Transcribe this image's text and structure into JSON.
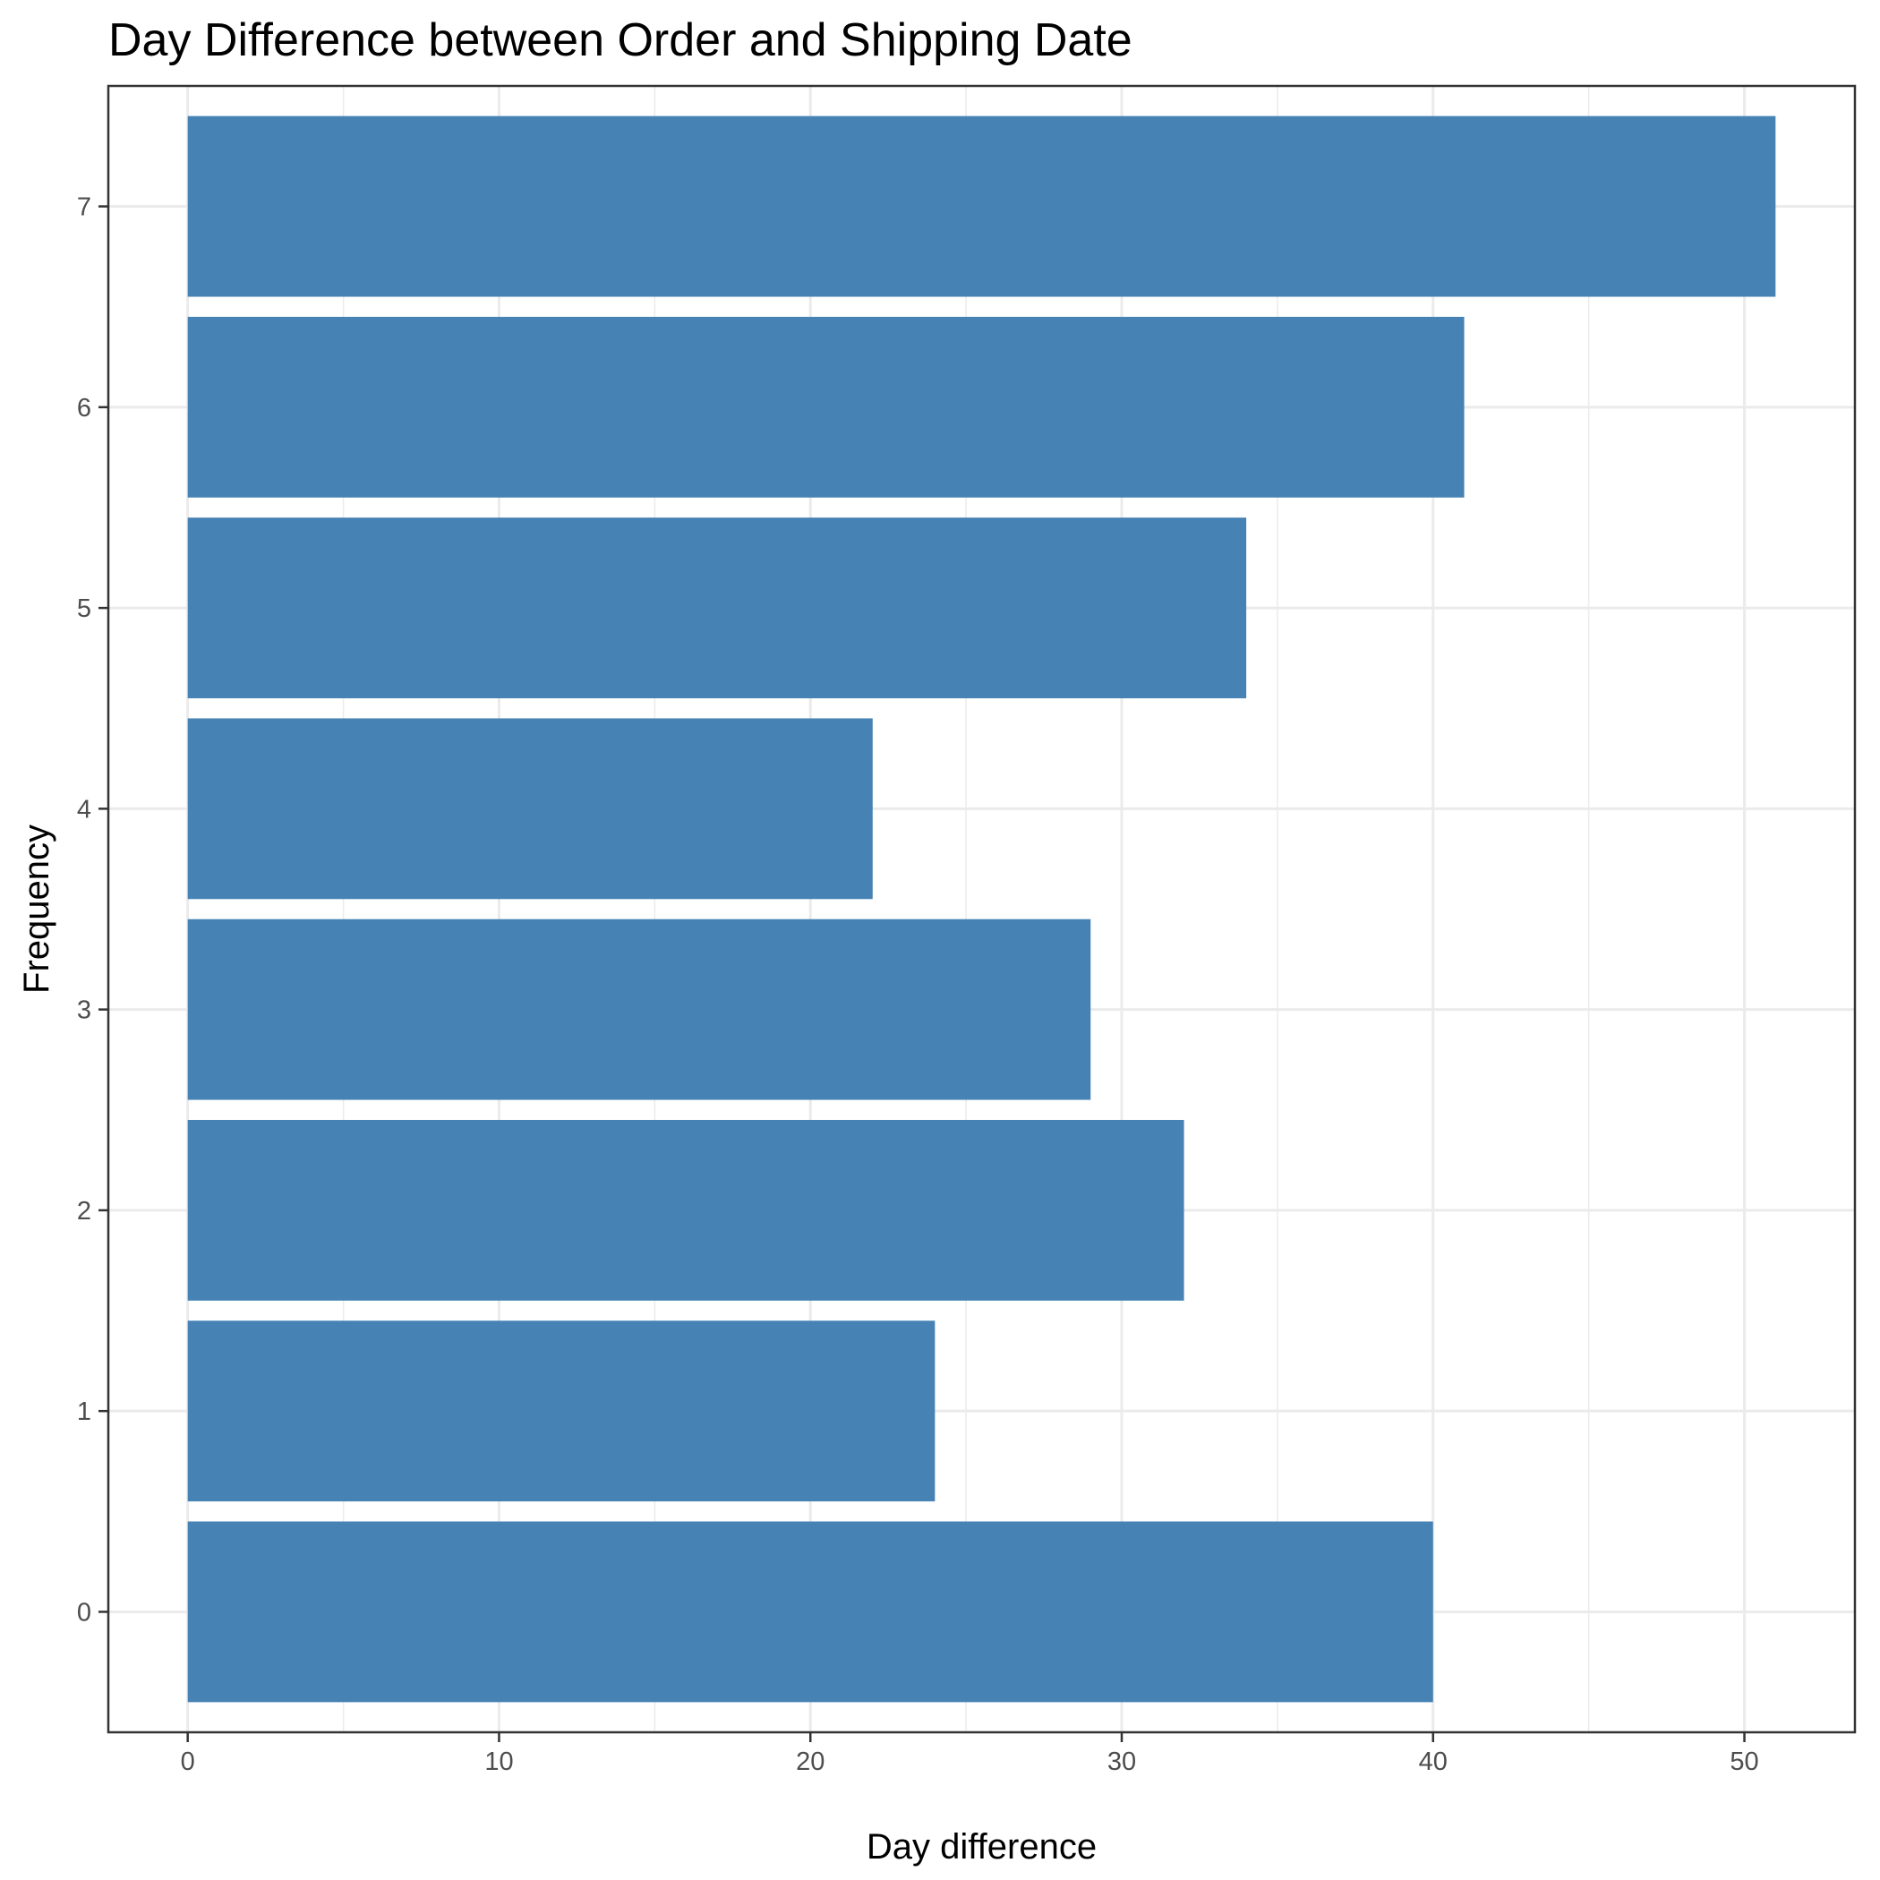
{
  "chart_data": {
    "type": "bar",
    "orientation": "horizontal",
    "title": "Day Difference between Order and Shipping Date",
    "xlabel": "Day difference",
    "ylabel": "Frequency",
    "categories": [
      "0",
      "1",
      "2",
      "3",
      "4",
      "5",
      "6",
      "7"
    ],
    "values": [
      40,
      24,
      32,
      29,
      22,
      34,
      41,
      51
    ],
    "xlim": [
      -2.55,
      53.55
    ],
    "xticks": [
      0,
      10,
      20,
      30,
      40,
      50
    ],
    "x_minor": [
      5,
      15,
      25,
      35,
      45
    ],
    "bar_color": "#4682b4",
    "grid": true,
    "legend": "none"
  }
}
